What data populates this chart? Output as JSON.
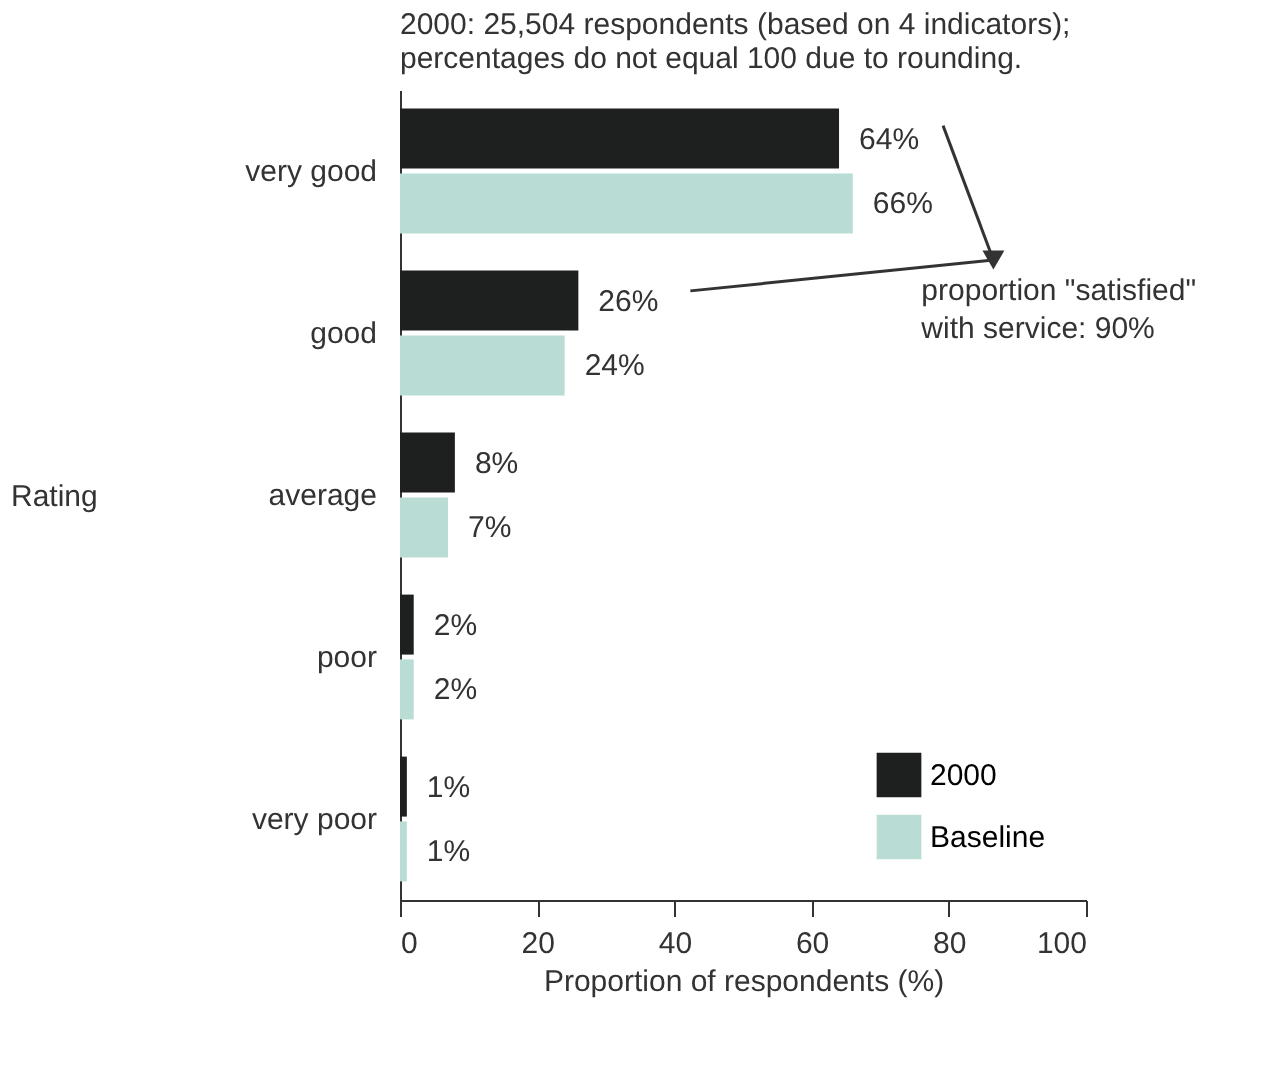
{
  "chart_data": {
    "type": "bar",
    "orientation": "horizontal",
    "title": "2000:  25,504 respondents (based on 4 indicators);\npercentages do not equal 100 due to rounding.",
    "xlabel": "Proportion of respondents (%)",
    "ylabel": "Rating",
    "categories": [
      "very good",
      "good",
      "average",
      "poor",
      "very poor"
    ],
    "series": [
      {
        "name": "2000",
        "color": "#1e1f1f",
        "values": [
          64,
          26,
          8,
          2,
          1
        ],
        "value_labels": [
          "64%",
          "26%",
          "8%",
          "2%",
          "1%"
        ]
      },
      {
        "name": "Baseline",
        "color": "#b9ddd5",
        "values": [
          66,
          24,
          7,
          2,
          1
        ],
        "value_labels": [
          "66%",
          "24%",
          "7%",
          "2%",
          "1%"
        ]
      }
    ],
    "xlim": [
      0,
      100
    ],
    "xticks": [
      0,
      20,
      40,
      60,
      80,
      100
    ],
    "grid": false,
    "legend": "bottom right",
    "annotations": [
      "proportion \"satisfied\"\nwith service: 90%"
    ]
  }
}
